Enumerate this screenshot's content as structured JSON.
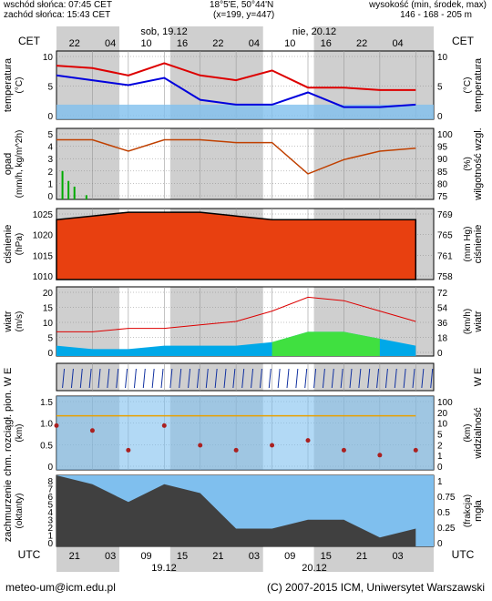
{
  "header": {
    "sunrise": "wschód słońca: 07:45 CET",
    "sunset": "zachód słońca: 15:43 CET",
    "coords": "18°5'E, 50°44'N",
    "grid": "(x=199, y=447)",
    "height_label": "wysokość (min, środek, max)",
    "height_values": "146 - 168 - 205 m"
  },
  "timeline": {
    "tz_top": "CET",
    "tz_bottom": "UTC",
    "date1": "sob, 19.12",
    "date2": "nie, 20.12",
    "top_hours": [
      "22",
      "04",
      "10",
      "16",
      "22",
      "04",
      "10",
      "16",
      "22",
      "04"
    ],
    "bottom_hours": [
      "21",
      "03",
      "09",
      "15",
      "21",
      "03",
      "09",
      "15",
      "21",
      "03"
    ],
    "bottom_dates": [
      "19.12",
      "20.12"
    ]
  },
  "panels": [
    {
      "id": "temperature",
      "left_label": "temperatura",
      "left_unit": "(°C)",
      "right_label": "temperatura",
      "right_unit": "(°C)",
      "left_ticks": [
        "10",
        "5",
        "0"
      ],
      "right_ticks": [
        "10",
        "5",
        "0"
      ]
    },
    {
      "id": "precip",
      "left_label": "opad",
      "left_unit": "(mm/h, kg/m^2h)",
      "right_label": "wilgotność wzgl.",
      "right_unit": "(%)",
      "left_ticks": [
        "5",
        "4",
        "3",
        "2",
        "1",
        "0"
      ],
      "right_ticks": [
        "100",
        "95",
        "90",
        "85",
        "80",
        "75"
      ]
    },
    {
      "id": "pressure",
      "left_label": "ciśnienie",
      "left_unit": "(hPa)",
      "right_label": "ciśnienie",
      "right_unit": "(mm Hg)",
      "left_ticks": [
        "1025",
        "1020",
        "1015",
        "1010"
      ],
      "right_ticks": [
        "769",
        "765",
        "761",
        "758"
      ]
    },
    {
      "id": "wind",
      "left_label": "wiatr",
      "left_unit": "(m/s)",
      "right_label": "wiatr",
      "right_unit": "(km/h)",
      "left_ticks": [
        "20",
        "15",
        "10",
        "5",
        "0"
      ],
      "right_ticks": [
        "72",
        "54",
        "36",
        "18",
        "0"
      ]
    },
    {
      "id": "winddir",
      "left_label": "W E",
      "right_label": "W E"
    },
    {
      "id": "visibility",
      "left_label": "chm. rozciągł. pion.",
      "left_unit": "(km)",
      "right_label": "widzialność",
      "right_unit": "(km)",
      "left_ticks": [
        "1.5",
        "1.0",
        "0.5",
        "0"
      ],
      "right_ticks": [
        "100",
        "20",
        "10",
        "5",
        "2",
        "1",
        "0"
      ]
    },
    {
      "id": "clouds",
      "left_label": "zachmurzenie",
      "left_unit": "(oktanty)",
      "right_label": "mgła",
      "right_unit": "(frakcja)",
      "left_ticks": [
        "8",
        "7",
        "6",
        "5",
        "4",
        "3",
        "2",
        "1",
        "0"
      ],
      "right_ticks": [
        "1",
        "0.75",
        "0.5",
        "0.25",
        "0"
      ]
    }
  ],
  "footer": {
    "email": "meteo-um@icm.edu.pl",
    "copyright": "(C) 2007-2015 ICM, Uniwersytet Warszawski"
  },
  "colors": {
    "night_bg": "#cfcfcf",
    "day_bg": "#ffffff",
    "temp_red": "#dd0000",
    "temp_blue": "#0000dd",
    "humidity": "#c04000",
    "pressure_fill": "#e84010",
    "wind_fill": "#00a8e8",
    "wind_green": "#40e040",
    "sky_blue": "#7fbfee",
    "cloud_dark": "#404040",
    "precip_bar": "#00aa00",
    "dot_red": "#aa2020",
    "dot_orange": "#e8a000"
  },
  "chart_data": [
    {
      "type": "line",
      "panel": "temperature",
      "ylim": [
        -3,
        11
      ],
      "x_hours": [
        0,
        6,
        12,
        18,
        24,
        30,
        36,
        42,
        48,
        54,
        60
      ],
      "series": [
        {
          "values": [
            8,
            7.5,
            6,
            8.5,
            6,
            5,
            7,
            3.5,
            3.5,
            3,
            3
          ]
        },
        {
          "values": [
            6,
            5,
            4,
            5.5,
            1,
            0,
            0,
            2.5,
            -0.5,
            -0.5,
            0
          ]
        }
      ]
    },
    {
      "type": "line",
      "panel": "humidity",
      "ylim": [
        75,
        100
      ],
      "x_hours": [
        0,
        6,
        12,
        18,
        24,
        30,
        36,
        42,
        48,
        54,
        60
      ],
      "series": [
        {
          "values": [
            96,
            96,
            92,
            96,
            96,
            95,
            95,
            84,
            89,
            92,
            93
          ]
        }
      ]
    },
    {
      "type": "bar",
      "panel": "precip",
      "ylim": [
        0,
        5
      ],
      "x_hours": [
        1,
        2,
        3,
        5
      ],
      "values": [
        2.0,
        1.3,
        0.9,
        0.3
      ]
    },
    {
      "type": "area",
      "panel": "pressure",
      "ylim": [
        1008,
        1027
      ],
      "x_hours": [
        0,
        6,
        12,
        18,
        24,
        30,
        36,
        42,
        48,
        54,
        60
      ],
      "series": [
        {
          "values": [
            1024,
            1025,
            1026,
            1026,
            1026,
            1025,
            1024,
            1024,
            1024,
            1024,
            1024
          ]
        }
      ]
    },
    {
      "type": "area",
      "panel": "wind",
      "ylim": [
        0,
        20
      ],
      "x_hours": [
        0,
        6,
        12,
        18,
        24,
        30,
        36,
        42,
        48,
        54,
        60
      ],
      "series": [
        {
          "values": [
            3,
            2,
            2,
            3,
            3,
            3,
            4,
            7,
            7,
            5,
            3
          ]
        },
        {
          "values": [
            7,
            7,
            8,
            8,
            9,
            10,
            13,
            17,
            16,
            13,
            10
          ]
        }
      ]
    },
    {
      "type": "scatter",
      "panel": "visibility",
      "ylim": [
        0,
        1.5
      ],
      "x_hours": [
        0,
        6,
        12,
        18,
        24,
        30,
        36,
        42,
        48,
        54,
        60
      ],
      "series": [
        {
          "values": [
            1.1,
            1.1,
            1.1,
            1.1,
            1.1,
            1.1,
            1.1,
            1.1,
            1.1,
            1.1,
            1.1
          ]
        },
        {
          "values": [
            0.9,
            0.8,
            0.4,
            0.9,
            0.5,
            0.4,
            0.5,
            0.6,
            0.4,
            0.3,
            0.4
          ]
        }
      ]
    },
    {
      "type": "area",
      "panel": "clouds",
      "ylim": [
        0,
        8
      ],
      "x_hours": [
        0,
        6,
        12,
        18,
        24,
        30,
        36,
        42,
        48,
        54,
        60
      ],
      "series": [
        {
          "values": [
            8,
            7,
            5,
            7,
            6,
            2,
            2,
            3,
            3,
            1,
            2
          ]
        }
      ]
    }
  ]
}
